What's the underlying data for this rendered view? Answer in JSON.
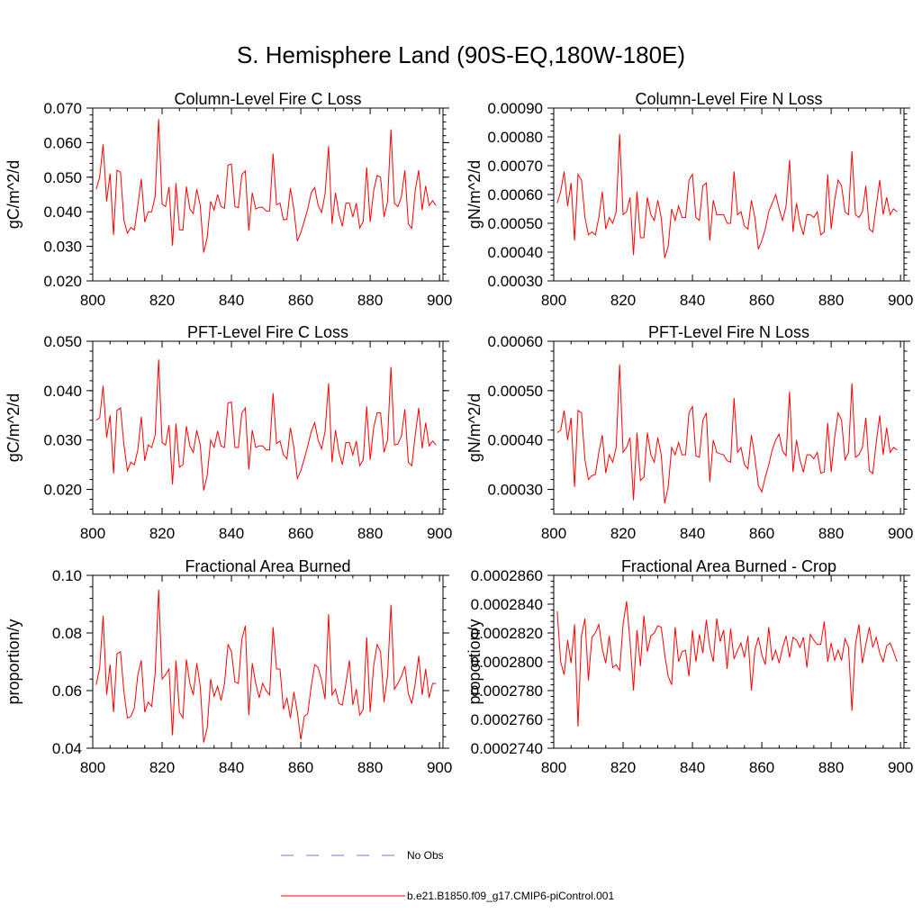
{
  "figure": {
    "title": "S. Hemisphere Land (90S-EQ,180W-180E)"
  },
  "colors": {
    "series": "#ff0000",
    "obs": "#6b7bd6",
    "axis": "#000000"
  },
  "legend": {
    "items": [
      {
        "label": "No Obs",
        "style": "dashed",
        "color": "#6b7bd6"
      },
      {
        "label": "b.e21.B1850.f09_g17.CMIP6-piControl.001",
        "style": "solid",
        "color": "#ff0000"
      }
    ]
  },
  "chart_data": [
    {
      "type": "line",
      "title": "Column-Level Fire C Loss",
      "xlabel": "",
      "ylabel": "gC/m^2/d",
      "xlim": [
        800,
        901
      ],
      "ylim": [
        0.02,
        0.07
      ],
      "xticks": [
        800,
        820,
        840,
        860,
        880,
        900
      ],
      "xtick_labels": [
        "800",
        "820",
        "840",
        "860",
        "880",
        "900"
      ],
      "yticks": [
        0.02,
        0.03,
        0.04,
        0.05,
        0.06,
        0.07
      ],
      "ytick_labels": [
        "0.020",
        "0.030",
        "0.040",
        "0.050",
        "0.060",
        "0.070"
      ],
      "x_start": 801,
      "series": [
        {
          "name": "b.e21.B1850.f09_g17.CMIP6-piControl.001",
          "values": [
            0.0465,
            0.05,
            0.0595,
            0.043,
            0.051,
            0.0333,
            0.052,
            0.0515,
            0.0375,
            0.0338,
            0.0355,
            0.0347,
            0.0418,
            0.0495,
            0.037,
            0.04,
            0.04,
            0.0445,
            0.0668,
            0.0422,
            0.0415,
            0.0472,
            0.0302,
            0.0483,
            0.0348,
            0.0347,
            0.0473,
            0.0408,
            0.0395,
            0.0465,
            0.0418,
            0.0282,
            0.0325,
            0.043,
            0.0405,
            0.045,
            0.0415,
            0.041,
            0.0535,
            0.0538,
            0.0415,
            0.0412,
            0.0508,
            0.0518,
            0.0345,
            0.0455,
            0.0408,
            0.0413,
            0.0413,
            0.0402,
            0.0402,
            0.0568,
            0.042,
            0.0425,
            0.0377,
            0.0378,
            0.0468,
            0.0408,
            0.0315,
            0.034,
            0.0373,
            0.0408,
            0.0455,
            0.047,
            0.0418,
            0.0398,
            0.0452,
            0.059,
            0.0365,
            0.0455,
            0.0393,
            0.0358,
            0.0425,
            0.0425,
            0.0385,
            0.0425,
            0.0353,
            0.0372,
            0.0528,
            0.037,
            0.046,
            0.0505,
            0.05,
            0.0385,
            0.0428,
            0.0638,
            0.0425,
            0.0415,
            0.0443,
            0.052,
            0.0365,
            0.0352,
            0.0463,
            0.052,
            0.0405,
            0.0475,
            0.0418,
            0.0432,
            0.0418
          ]
        }
      ]
    },
    {
      "type": "line",
      "title": "Column-Level Fire N Loss",
      "xlabel": "",
      "ylabel": "gN/m^2/d",
      "xlim": [
        800,
        901
      ],
      "ylim": [
        0.0003,
        0.0009
      ],
      "xticks": [
        800,
        820,
        840,
        860,
        880,
        900
      ],
      "xtick_labels": [
        "800",
        "820",
        "840",
        "860",
        "880",
        "900"
      ],
      "yticks": [
        0.0003,
        0.0004,
        0.0005,
        0.0006,
        0.0007,
        0.0008,
        0.0009
      ],
      "ytick_labels": [
        "0.00030",
        "0.00040",
        "0.00050",
        "0.00060",
        "0.00070",
        "0.00080",
        "0.00090"
      ],
      "x_start": 801,
      "series": [
        {
          "name": "b.e21.B1850.f09_g17.CMIP6-piControl.001",
          "values": [
            0.00057,
            0.00061,
            0.00068,
            0.00056,
            0.00064,
            0.00044,
            0.00067,
            0.00065,
            0.00052,
            0.00046,
            0.00047,
            0.00046,
            0.00052,
            0.00061,
            0.00048,
            0.00052,
            0.0005,
            0.00054,
            0.00081,
            0.00053,
            0.00054,
            0.00059,
            0.00039,
            0.00061,
            0.00045,
            0.00045,
            0.00059,
            0.00053,
            0.00051,
            0.00058,
            0.00052,
            0.00038,
            0.00042,
            0.00055,
            0.00051,
            0.00056,
            0.00052,
            0.00052,
            0.00065,
            0.00067,
            0.00052,
            0.00051,
            0.00063,
            0.00064,
            0.00044,
            0.00058,
            0.00053,
            0.00053,
            0.00053,
            0.0005,
            0.0005,
            0.00068,
            0.00053,
            0.00054,
            0.00049,
            0.00048,
            0.00058,
            0.00052,
            0.00041,
            0.00044,
            0.00048,
            0.00054,
            0.00057,
            0.0006,
            0.00055,
            0.00051,
            0.00056,
            0.00072,
            0.00047,
            0.00057,
            0.0005,
            0.00046,
            0.00053,
            0.00053,
            0.00052,
            0.00054,
            0.00046,
            0.00047,
            0.00067,
            0.00048,
            0.00058,
            0.00065,
            0.00063,
            0.00054,
            0.00053,
            0.00075,
            0.00053,
            0.00052,
            0.00054,
            0.00063,
            0.00048,
            0.00047,
            0.00056,
            0.00065,
            0.00053,
            0.00059,
            0.00053,
            0.00055,
            0.00054
          ]
        }
      ]
    },
    {
      "type": "line",
      "title": "PFT-Level Fire C Loss",
      "xlabel": "",
      "ylabel": "gC/m^2/d",
      "xlim": [
        800,
        901
      ],
      "ylim": [
        0.015,
        0.05
      ],
      "xticks": [
        800,
        820,
        840,
        860,
        880,
        900
      ],
      "xtick_labels": [
        "800",
        "820",
        "840",
        "860",
        "880",
        "900"
      ],
      "yticks": [
        0.02,
        0.03,
        0.04,
        0.05
      ],
      "ytick_labels": [
        "0.020",
        "0.030",
        "0.040",
        "0.050"
      ],
      "x_start": 801,
      "series": [
        {
          "name": "b.e21.B1850.f09_g17.CMIP6-piControl.001",
          "values": [
            0.034,
            0.0345,
            0.041,
            0.0305,
            0.035,
            0.0232,
            0.036,
            0.0365,
            0.029,
            0.0238,
            0.0255,
            0.025,
            0.028,
            0.0347,
            0.0258,
            0.029,
            0.0285,
            0.031,
            0.0463,
            0.0295,
            0.029,
            0.033,
            0.021,
            0.0333,
            0.0245,
            0.025,
            0.0328,
            0.0288,
            0.0275,
            0.032,
            0.029,
            0.0198,
            0.0228,
            0.03,
            0.0285,
            0.0318,
            0.0288,
            0.0285,
            0.0375,
            0.0377,
            0.0285,
            0.0285,
            0.0355,
            0.0365,
            0.024,
            0.032,
            0.0285,
            0.0288,
            0.0288,
            0.028,
            0.028,
            0.0395,
            0.0293,
            0.0298,
            0.027,
            0.0262,
            0.0325,
            0.0285,
            0.0222,
            0.0238,
            0.0262,
            0.0288,
            0.0317,
            0.0335,
            0.03,
            0.0282,
            0.0318,
            0.0415,
            0.0255,
            0.032,
            0.0275,
            0.025,
            0.0295,
            0.0295,
            0.027,
            0.0298,
            0.0248,
            0.026,
            0.0368,
            0.026,
            0.0325,
            0.0355,
            0.0355,
            0.0275,
            0.03,
            0.0448,
            0.029,
            0.0292,
            0.0308,
            0.0362,
            0.0255,
            0.0248,
            0.031,
            0.0365,
            0.0283,
            0.0335,
            0.0288,
            0.0298,
            0.029
          ]
        }
      ]
    },
    {
      "type": "line",
      "title": "PFT-Level Fire N Loss",
      "xlabel": "",
      "ylabel": "gN/m^2/d",
      "xlim": [
        800,
        901
      ],
      "ylim": [
        0.00025,
        0.0006
      ],
      "xticks": [
        800,
        820,
        840,
        860,
        880,
        900
      ],
      "xtick_labels": [
        "800",
        "820",
        "840",
        "860",
        "880",
        "900"
      ],
      "yticks": [
        0.0003,
        0.0004,
        0.0005,
        0.0006
      ],
      "ytick_labels": [
        "0.00030",
        "0.00040",
        "0.00050",
        "0.00060"
      ],
      "x_start": 801,
      "series": [
        {
          "name": "b.e21.B1850.f09_g17.CMIP6-piControl.001",
          "values": [
            0.000415,
            0.00042,
            0.00046,
            0.0004,
            0.000445,
            0.000305,
            0.00046,
            0.000455,
            0.00036,
            0.00032,
            0.000328,
            0.00033,
            0.000375,
            0.00041,
            0.000333,
            0.00037,
            0.000355,
            0.000385,
            0.000553,
            0.000375,
            0.000385,
            0.000405,
            0.000278,
            0.000415,
            0.000318,
            0.000325,
            0.000415,
            0.00037,
            0.000355,
            0.000405,
            0.00037,
            0.000272,
            0.000305,
            0.000385,
            0.00037,
            0.000395,
            0.00037,
            0.00037,
            0.000455,
            0.000468,
            0.000368,
            0.000365,
            0.00044,
            0.000455,
            0.000315,
            0.0004,
            0.000375,
            0.000372,
            0.00037,
            0.000358,
            0.000355,
            0.000485,
            0.000375,
            0.000385,
            0.00035,
            0.000342,
            0.00041,
            0.000365,
            0.000308,
            0.000295,
            0.000325,
            0.00035,
            0.00038,
            0.0004,
            0.000412,
            0.000378,
            0.000368,
            0.000498,
            0.000335,
            0.0004,
            0.00036,
            0.000335,
            0.00037,
            0.00037,
            0.000362,
            0.000375,
            0.000333,
            0.000335,
            0.000435,
            0.000335,
            0.000405,
            0.000455,
            0.00044,
            0.00036,
            0.000375,
            0.000515,
            0.000365,
            0.00037,
            0.000385,
            0.000445,
            0.000338,
            0.000332,
            0.000395,
            0.00045,
            0.00037,
            0.000425,
            0.000375,
            0.000385,
            0.00038
          ]
        }
      ]
    },
    {
      "type": "line",
      "title": "Fractional Area Burned",
      "xlabel": "",
      "ylabel": "proportion/y",
      "xlim": [
        800,
        901
      ],
      "ylim": [
        0.04,
        0.1
      ],
      "xticks": [
        800,
        820,
        840,
        860,
        880,
        900
      ],
      "xtick_labels": [
        "800",
        "820",
        "840",
        "860",
        "880",
        "900"
      ],
      "yticks": [
        0.04,
        0.06,
        0.08,
        0.1
      ],
      "ytick_labels": [
        "0.04",
        "0.06",
        "0.08",
        "0.10"
      ],
      "x_start": 801,
      "series": [
        {
          "name": "b.e21.B1850.f09_g17.CMIP6-piControl.001",
          "values": [
            0.062,
            0.068,
            0.086,
            0.0585,
            0.069,
            0.0525,
            0.0728,
            0.0735,
            0.0595,
            0.0505,
            0.051,
            0.054,
            0.0655,
            0.0705,
            0.0525,
            0.056,
            0.0545,
            0.066,
            0.095,
            0.064,
            0.0655,
            0.0675,
            0.0445,
            0.0705,
            0.0525,
            0.0505,
            0.0708,
            0.0625,
            0.0585,
            0.0695,
            0.0615,
            0.042,
            0.047,
            0.064,
            0.058,
            0.0615,
            0.0565,
            0.0625,
            0.076,
            0.0735,
            0.063,
            0.0625,
            0.0778,
            0.0825,
            0.0515,
            0.0695,
            0.0625,
            0.0575,
            0.0625,
            0.06,
            0.0585,
            0.082,
            0.0675,
            0.0675,
            0.0535,
            0.0575,
            0.0505,
            0.0595,
            0.0525,
            0.043,
            0.051,
            0.052,
            0.0615,
            0.069,
            0.068,
            0.0635,
            0.057,
            0.0865,
            0.0585,
            0.0605,
            0.0555,
            0.055,
            0.0625,
            0.0705,
            0.055,
            0.0605,
            0.0515,
            0.0535,
            0.0785,
            0.0525,
            0.0685,
            0.076,
            0.0735,
            0.056,
            0.065,
            0.0898,
            0.0605,
            0.0625,
            0.065,
            0.0685,
            0.059,
            0.0555,
            0.0625,
            0.072,
            0.0585,
            0.0675,
            0.0575,
            0.0625,
            0.0625
          ]
        }
      ]
    },
    {
      "type": "line",
      "title": "Fractional Area Burned - Crop",
      "xlabel": "",
      "ylabel": "proportion/y",
      "xlim": [
        800,
        901
      ],
      "ylim": [
        0.000274,
        0.000286
      ],
      "xticks": [
        800,
        820,
        840,
        860,
        880,
        900
      ],
      "xtick_labels": [
        "800",
        "820",
        "840",
        "860",
        "880",
        "900"
      ],
      "yticks": [
        0.000274,
        0.000276,
        0.000278,
        0.00028,
        0.000282,
        0.000284,
        0.000286
      ],
      "ytick_labels": [
        "0.0002740",
        "0.0002760",
        "0.0002780",
        "0.0002800",
        "0.0002820",
        "0.0002840",
        "0.0002860"
      ],
      "x_start": 801,
      "series": [
        {
          "name": "b.e21.B1850.f09_g17.CMIP6-piControl.001",
          "values": [
            0.0002835,
            0.00028,
            0.0002791,
            0.0002815,
            0.0002799,
            0.0002826,
            0.0002755,
            0.0002818,
            0.000283,
            0.0002787,
            0.0002817,
            0.000282,
            0.0002826,
            0.0002809,
            0.0002799,
            0.0002818,
            0.0002796,
            0.0002798,
            0.0002794,
            0.0002826,
            0.0002842,
            0.0002814,
            0.000278,
            0.0002822,
            0.0002797,
            0.0002832,
            0.0002807,
            0.0002818,
            0.000282,
            0.0002825,
            0.0002824,
            0.0002805,
            0.000279,
            0.0002784,
            0.0002824,
            0.00028,
            0.0002807,
            0.0002808,
            0.000279,
            0.0002822,
            0.00028,
            0.0002819,
            0.0002806,
            0.0002829,
            0.000281,
            0.00028,
            0.000283,
            0.0002814,
            0.0002822,
            0.0002795,
            0.0002823,
            0.0002802,
            0.0002808,
            0.0002813,
            0.0002803,
            0.0002818,
            0.000278,
            0.0002808,
            0.0002817,
            0.0002805,
            0.0002798,
            0.0002824,
            0.0002801,
            0.0002808,
            0.0002799,
            0.000281,
            0.0002818,
            0.0002803,
            0.0002817,
            0.0002815,
            0.000281,
            0.0002817,
            0.0002796,
            0.0002819,
            0.0002815,
            0.0002812,
            0.0002812,
            0.0002828,
            0.00028,
            0.0002813,
            0.0002801,
            0.0002808,
            0.0002801,
            0.0002816,
            0.000281,
            0.0002766,
            0.0002812,
            0.0002826,
            0.0002799,
            0.0002812,
            0.0002824,
            0.000281,
            0.0002817,
            0.0002806,
            0.00028,
            0.0002811,
            0.0002813,
            0.0002807,
            0.00028
          ]
        }
      ]
    }
  ]
}
